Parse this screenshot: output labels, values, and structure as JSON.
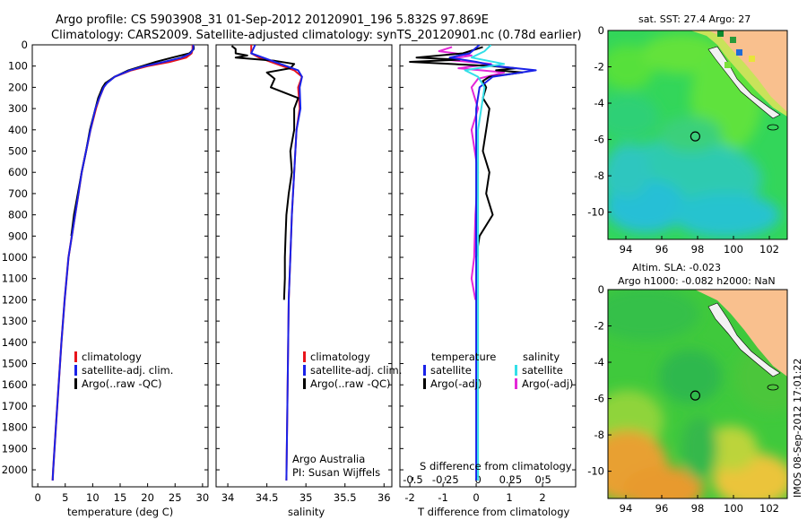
{
  "header": {
    "line1": "Argo profile: CS 5903908_31 01-Sep-2012 20120901_196 5.832S 97.869E",
    "line2": "Climatology: CARS2009. Satellite-adjusted climatology: synTS_20120901.nc (0.78d earlier)"
  },
  "colors": {
    "climatology": "#e8141b",
    "satellite": "#1a22e8",
    "argo": "#000000",
    "salinity_sat": "#33dfe8",
    "salinity_argo": "#e428d8",
    "land": "#f9c08e"
  },
  "chart_data": [
    {
      "id": "temperature",
      "type": "line",
      "xlabel": "temperature (deg C)",
      "ylabel": "",
      "xlim": [
        -1,
        31
      ],
      "ylim": [
        2080,
        0
      ],
      "xticks": [
        "0",
        "5",
        "10",
        "15",
        "20",
        "25",
        "30"
      ],
      "yticks": [
        "0",
        "100",
        "200",
        "300",
        "400",
        "500",
        "600",
        "700",
        "800",
        "900",
        "1000",
        "1100",
        "1200",
        "1300",
        "1400",
        "1500",
        "1600",
        "1700",
        "1800",
        "1900",
        "2000"
      ],
      "legend": [
        "climatology",
        "satellite-adj. clim.",
        "Argo(..raw -QC)"
      ],
      "series": [
        {
          "name": "climatology",
          "depth": [
            0,
            20,
            40,
            60,
            80,
            100,
            120,
            150,
            180,
            200,
            250,
            300,
            400,
            500,
            600,
            700,
            800,
            900,
            1000,
            1200,
            1400,
            1600,
            1800,
            2000,
            2050
          ],
          "values": [
            28.2,
            28.2,
            28.0,
            27.0,
            24.0,
            20.0,
            17.0,
            14.0,
            12.5,
            12.0,
            11.2,
            10.6,
            9.6,
            8.8,
            8.0,
            7.4,
            6.8,
            6.2,
            5.6,
            4.9,
            4.3,
            3.8,
            3.3,
            2.8,
            2.7
          ]
        },
        {
          "name": "satellite-adj. clim.",
          "depth": [
            0,
            20,
            40,
            60,
            80,
            100,
            120,
            150,
            180,
            200,
            250,
            300,
            400,
            500,
            600,
            700,
            800,
            900,
            1000,
            1200,
            1400,
            1600,
            1800,
            2000,
            2050
          ],
          "values": [
            28.3,
            28.3,
            27.8,
            26.2,
            23.0,
            19.5,
            16.8,
            14.0,
            12.6,
            12.0,
            11.2,
            10.5,
            9.6,
            8.8,
            8.0,
            7.4,
            6.8,
            6.2,
            5.6,
            4.9,
            4.3,
            3.8,
            3.3,
            2.8,
            2.7
          ]
        },
        {
          "name": "Argo(..raw -QC)",
          "depth": [
            5,
            20,
            40,
            60,
            80,
            100,
            120,
            150,
            180,
            200,
            250,
            300,
            400,
            500,
            600,
            700,
            800,
            900
          ],
          "values": [
            28.4,
            28.4,
            27.6,
            24.5,
            21.5,
            19.0,
            16.5,
            14.0,
            12.3,
            11.8,
            11.0,
            10.5,
            9.5,
            8.8,
            8.0,
            7.3,
            6.6,
            6.1
          ]
        }
      ]
    },
    {
      "id": "salinity",
      "type": "line",
      "xlabel": "salinity",
      "ylabel": "",
      "xlim": [
        33.85,
        36.1
      ],
      "ylim": [
        2080,
        0
      ],
      "xticks": [
        "34",
        "34.5",
        "35",
        "35.5",
        "36"
      ],
      "legend": [
        "climatology",
        "satellite-adj. clim.",
        "Argo(..raw -QC)"
      ],
      "annotation": [
        "Argo Australia",
        "PI: Susan Wijffels"
      ],
      "series": [
        {
          "name": "climatology",
          "depth": [
            0,
            40,
            60,
            80,
            100,
            120,
            150,
            200,
            300,
            400,
            600,
            800,
            1000,
            1200,
            1500,
            2050
          ],
          "values": [
            34.3,
            34.3,
            34.4,
            34.55,
            34.7,
            34.85,
            34.95,
            34.9,
            34.92,
            34.88,
            34.85,
            34.82,
            34.8,
            34.78,
            34.77,
            34.75
          ]
        },
        {
          "name": "satellite-adj. clim.",
          "depth": [
            0,
            40,
            60,
            80,
            100,
            120,
            150,
            200,
            300,
            400,
            600,
            800,
            1000,
            1200,
            1500,
            2050
          ],
          "values": [
            34.35,
            34.3,
            34.45,
            34.6,
            34.75,
            34.9,
            34.95,
            34.92,
            34.93,
            34.88,
            34.85,
            34.82,
            34.8,
            34.78,
            34.77,
            34.75
          ]
        },
        {
          "name": "Argo(..raw -QC)",
          "depth": [
            5,
            20,
            40,
            50,
            60,
            75,
            90,
            110,
            130,
            160,
            200,
            250,
            300,
            400,
            500,
            600,
            700,
            800,
            900,
            1000,
            1100,
            1200
          ],
          "values": [
            34.05,
            34.1,
            34.1,
            34.25,
            34.1,
            34.6,
            34.85,
            34.8,
            34.5,
            34.6,
            34.55,
            34.9,
            34.85,
            34.85,
            34.8,
            34.82,
            34.78,
            34.75,
            34.74,
            34.73,
            34.73,
            34.72
          ]
        }
      ]
    },
    {
      "id": "difference",
      "type": "line",
      "xlabel": "T difference from climatology",
      "xlabel2": "S difference from climatology",
      "xlim": [
        -2.3,
        3.0
      ],
      "s_xlim": [
        -0.6,
        0.75
      ],
      "ylim": [
        2080,
        0
      ],
      "xticks": [
        "-2",
        "-1",
        "0",
        "1",
        "2"
      ],
      "s_xticks": [
        "-0.5",
        "-0.25",
        "0",
        "0.25",
        "0.5"
      ],
      "legend_temperature": [
        "temperature",
        "satellite",
        "Argo(-adj)"
      ],
      "legend_salinity": [
        "salinity",
        "satellite",
        "Argo(-adj)"
      ],
      "series": [
        {
          "name": "temperature satellite",
          "depth": [
            0,
            40,
            60,
            80,
            100,
            120,
            150,
            200,
            300,
            500,
            800,
            1200,
            1600,
            2050
          ],
          "values": [
            0.1,
            -0.2,
            -0.8,
            0.0,
            0.6,
            1.8,
            0.5,
            0.1,
            0.0,
            0.0,
            0.0,
            0.0,
            0.0,
            0.0
          ]
        },
        {
          "name": "temperature Argo(-adj)",
          "depth": [
            10,
            40,
            60,
            70,
            80,
            90,
            100,
            110,
            120,
            130,
            150,
            170,
            200,
            250,
            300,
            400,
            500,
            600,
            700,
            800,
            900,
            1000
          ],
          "values": [
            0.2,
            -0.4,
            -1.8,
            -0.5,
            -2.0,
            -0.8,
            0.5,
            1.2,
            0.6,
            1.4,
            0.4,
            0.2,
            0.3,
            0.2,
            0.4,
            0.3,
            0.2,
            0.4,
            0.3,
            0.5,
            0.1,
            0.0
          ]
        },
        {
          "name": "salinity satellite",
          "depth": [
            0,
            30,
            60,
            90,
            120,
            150,
            200,
            400,
            800,
            1200,
            1600,
            2050
          ],
          "values": [
            0.1,
            0.05,
            -0.05,
            0.2,
            -0.1,
            0.0,
            0.05,
            0.0,
            0.0,
            0.0,
            0.0,
            0.0
          ]
        },
        {
          "name": "salinity Argo(-adj)",
          "depth": [
            10,
            30,
            50,
            70,
            90,
            110,
            130,
            160,
            200,
            300,
            400,
            600,
            800,
            1000,
            1100,
            1200
          ],
          "values": [
            -0.2,
            -0.3,
            -0.05,
            -0.25,
            0.1,
            -0.15,
            0.2,
            0.0,
            -0.05,
            0.0,
            -0.05,
            0.0,
            -0.02,
            -0.03,
            -0.05,
            -0.02
          ]
        }
      ]
    },
    {
      "id": "sst_map",
      "type": "heatmap",
      "title": "sat. SST: 27.4  Argo: 27",
      "xlim": [
        93,
        103
      ],
      "ylim": [
        -11.5,
        0
      ],
      "xticks": [
        "94",
        "96",
        "98",
        "100",
        "102"
      ],
      "yticks": [
        "0",
        "-2",
        "-4",
        "-6",
        "-8",
        "-10"
      ],
      "argo_location": [
        97.869,
        -5.832
      ]
    },
    {
      "id": "sla_map",
      "type": "heatmap",
      "title_line1": "Altim. SLA: -0.023",
      "title_line2": "Argo h1000: -0.082 h2000: NaN",
      "xlim": [
        93,
        103
      ],
      "ylim": [
        -11.5,
        0
      ],
      "xticks": [
        "94",
        "96",
        "98",
        "100",
        "102"
      ],
      "yticks": [
        "0",
        "-2",
        "-4",
        "-6",
        "-8",
        "-10"
      ],
      "argo_location": [
        97.869,
        -5.832
      ]
    }
  ],
  "footer": {
    "stamp": "IMOS 08-Sep-2012 17:01:22"
  }
}
